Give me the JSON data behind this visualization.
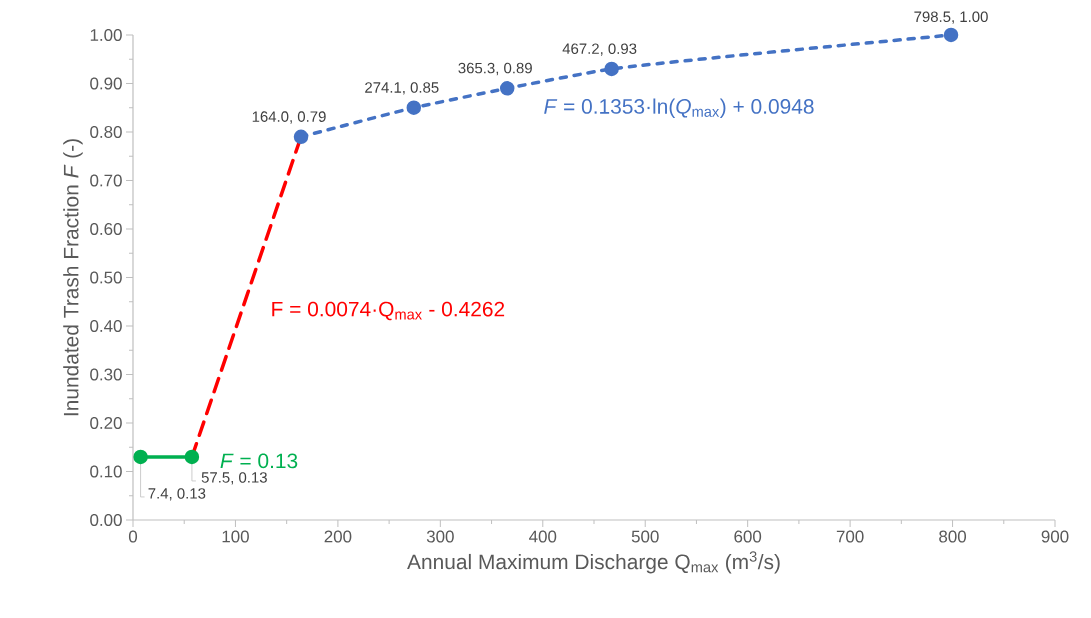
{
  "chart_data": {
    "type": "scatter",
    "xlabel": "Annual Maximum Discharge Q$_{max}$ (m$^{3}$/s)",
    "ylabel": "Inundated Trash Fraction *F* (-)",
    "xlim": [
      0,
      900
    ],
    "xticks": [
      0,
      100,
      200,
      300,
      400,
      500,
      600,
      700,
      800,
      900
    ],
    "ylim": [
      0,
      1
    ],
    "yticks": [
      {
        "value": 0,
        "label": "0.00"
      },
      {
        "value": 0.1,
        "label": "0.10"
      },
      {
        "value": 0.2,
        "label": "0.20"
      },
      {
        "value": 0.3,
        "label": "0.30"
      },
      {
        "value": 0.4,
        "label": "0.40"
      },
      {
        "value": 0.5,
        "label": "0.50"
      },
      {
        "value": 0.6,
        "label": "0.60"
      },
      {
        "value": 0.7,
        "label": "0.70"
      },
      {
        "value": 0.8,
        "label": "0.80"
      },
      {
        "value": 0.9,
        "label": "0.90"
      },
      {
        "value": 1,
        "label": "1.00"
      }
    ],
    "series": [
      {
        "type": "line",
        "color": "#00b050",
        "marker": "circle",
        "line_style": "solid",
        "x": [
          7.4,
          57.5
        ],
        "values": [
          0.13,
          0.13
        ],
        "value_labels": [
          "7.4, 0.13",
          "57.5, 0.13"
        ]
      },
      {
        "type": "line",
        "color": "#4472c4",
        "marker": "none",
        "line_style": "dotted",
        "x": [
          164.0,
          200,
          274.1,
          365.3,
          467.2,
          600,
          798.5
        ],
        "values": [
          0.79,
          0.81,
          0.85,
          0.89,
          0.93,
          0.96,
          1.0
        ]
      },
      {
        "color": "#4472c4",
        "marker": "circle",
        "x": [
          164.0,
          274.1,
          365.3,
          467.2,
          798.5
        ],
        "values": [
          0.79,
          0.85,
          0.89,
          0.93,
          1.0
        ],
        "value_labels": [
          "164.0, 0.79",
          "274.1, 0.85",
          "365.3, 0.89",
          "467.2, 0.93",
          "798.5, 1.00"
        ]
      },
      {
        "type": "line",
        "color": "#ff0000",
        "marker": "none",
        "line_style": "dashed",
        "x": [
          57.5,
          164.0
        ],
        "values": [
          0.13,
          0.79
        ]
      }
    ],
    "annotations": [
      "*F* = 0.13",
      "F = 0.0074·Q$_{max}$ - 0.4262",
      "*F* = 0.1353·ln(*Q*$_{max}$) + 0.0948"
    ]
  }
}
